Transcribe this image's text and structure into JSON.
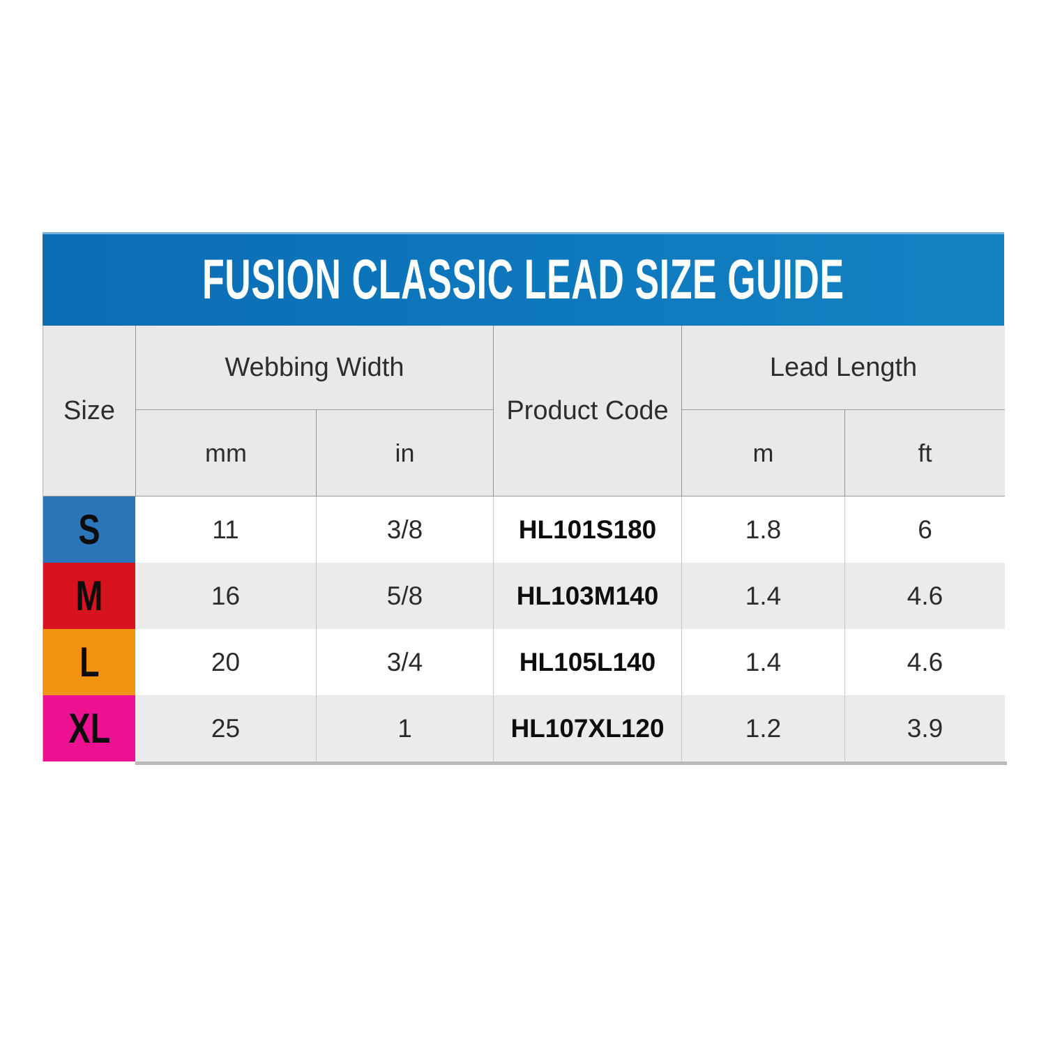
{
  "title": "FUSION CLASSIC LEAD SIZE GUIDE",
  "header": {
    "size": "Size",
    "webbing_width": "Webbing Width",
    "product_code": "Product Code",
    "lead_length": "Lead Length",
    "units": {
      "mm": "mm",
      "in": "in",
      "m": "m",
      "ft": "ft"
    }
  },
  "chart_data": {
    "type": "table",
    "title": "FUSION CLASSIC LEAD SIZE GUIDE",
    "columns": [
      "Size",
      "Webbing Width (mm)",
      "Webbing Width (in)",
      "Product Code",
      "Lead Length (m)",
      "Lead Length (ft)"
    ],
    "column_groups": [
      {
        "label": "Webbing Width",
        "columns": [
          "mm",
          "in"
        ]
      },
      {
        "label": "Lead Length",
        "columns": [
          "m",
          "ft"
        ]
      }
    ],
    "rows": [
      {
        "size": "S",
        "mm": "11",
        "in": "3/8",
        "code": "HL101S180",
        "m": "1.8",
        "ft": "6",
        "swatch_color": "#2b75b9"
      },
      {
        "size": "M",
        "mm": "16",
        "in": "5/8",
        "code": "HL103M140",
        "m": "1.4",
        "ft": "4.6",
        "swatch_color": "#d6131f"
      },
      {
        "size": "L",
        "mm": "20",
        "in": "3/4",
        "code": "HL105L140",
        "m": "1.4",
        "ft": "4.6",
        "swatch_color": "#f0930f"
      },
      {
        "size": "XL",
        "mm": "25",
        "in": "1",
        "code": "HL107XL120",
        "m": "1.2",
        "ft": "3.9",
        "swatch_color": "#eb1190"
      }
    ]
  },
  "colors": {
    "title_bar_blue": "#0d76bc",
    "title_bar_highlight": "#6fb0da",
    "title_text": "#ffffff",
    "header_bg": "#e9e9e9",
    "row_bg_light": "#ffffff",
    "row_bg_gray": "#ebebeb",
    "size_s_blue": "#2b75b9",
    "size_m_red": "#d6131f",
    "size_l_orange": "#f0930f",
    "size_xl_pink": "#eb1190",
    "header_grid_line": "#929292",
    "body_grid_line": "#c6c6c6",
    "bottom_strip": "#b9b9b9",
    "text_dark": "#2b2b2b"
  }
}
